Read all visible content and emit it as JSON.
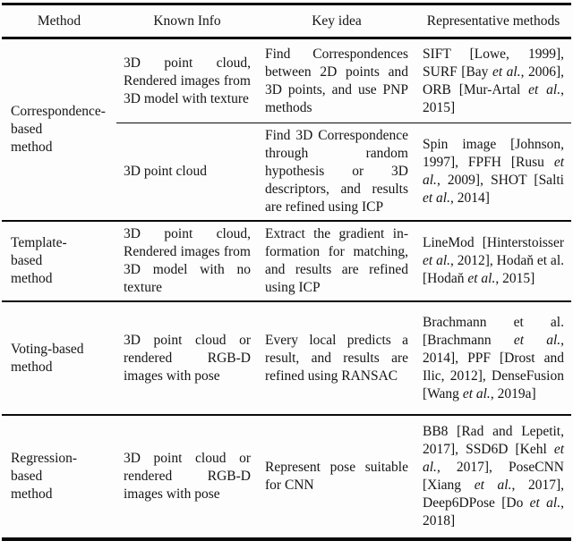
{
  "table": {
    "columns": [
      "Method",
      "Known Info",
      "Key idea",
      "Representative methods"
    ],
    "sections": [
      {
        "method": "Correspondence-\nbased\nmethod",
        "subrows": [
          {
            "known_info": "3D point cloud, Rendered images from 3D model with texture",
            "key_idea": "Find Correspondences between 2D points and 3D points, and use PNP methods",
            "representative": "SIFT [Lowe, 1999], SURF [Bay *et al.*, 2006], ORB [Mur-Artal *et al.*, 2015]"
          },
          {
            "known_info": "3D point cloud",
            "key_idea": "Find 3D Correspon­dence through random hypothesis or 3D descriptors, and results are refined using ICP",
            "representative": "Spin image [Johnson, 1997], FPFH [Rusu *et al.*, 2009], SHOT [Salti *et al.*, 2014]"
          }
        ]
      },
      {
        "method": "Template-\nbased\nmethod",
        "subrows": [
          {
            "known_info": "3D point cloud, Rendered images from 3D model with no texture",
            "key_idea": "Extract the gradient in­formation for matching, and results are refined using ICP",
            "representative": "LineMod [Hinter­stoisser *et al.*, 2012], Hodaň et al. [Hodaň *et al.*, 2015]"
          }
        ]
      },
      {
        "method": "Voting-based\nmethod",
        "subrows": [
          {
            "known_info": "3D point cloud or rendered RGB-D images with pose",
            "key_idea": "Every local predicts a result, and results are refined using RANSAC",
            "representative": "Brachmann et al. [Brachmann *et al.*, 2014], PPF [Drost and Ilic, 2012], DenseFusion [Wang *et al.*, 2019a]"
          }
        ]
      },
      {
        "method": "Regression-\nbased\nmethod",
        "subrows": [
          {
            "known_info": "3D point cloud or rendered RGB-D images with pose",
            "key_idea": "Represent pose suitable for CNN",
            "representative": "BB8 [Rad and Lepetit, 2017], SSD6D [Kehl *et al.*, 2017], PoseCNN [Xi­ang *et al.*, 2017], Deep6DPose [Do *et al.*, 2018]"
          }
        ]
      }
    ]
  }
}
